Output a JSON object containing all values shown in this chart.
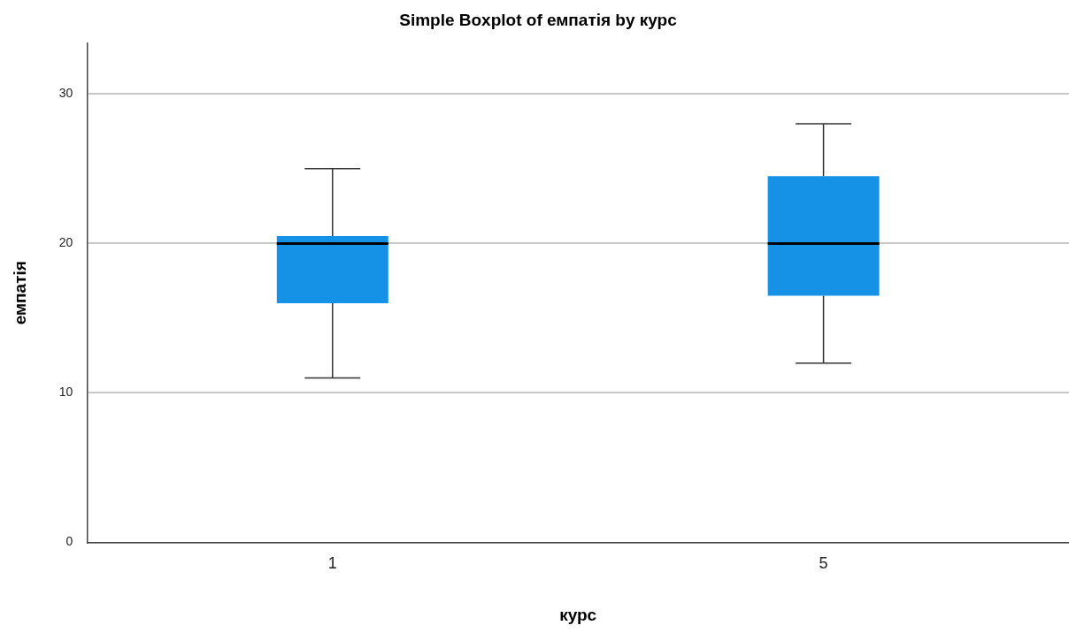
{
  "chart_data": {
    "type": "box",
    "title": "Simple Boxplot of емпатія by курс",
    "xlabel": "курс",
    "ylabel": "емпатія",
    "categories": [
      "1",
      "5"
    ],
    "boxes": [
      {
        "low": 11,
        "q1": 16,
        "median": 20,
        "q3": 20.5,
        "high": 25
      },
      {
        "low": 12,
        "q1": 16.5,
        "median": 20,
        "q3": 24.5,
        "high": 28
      }
    ],
    "color": "#1591e6",
    "ylim": [
      0,
      33.4
    ],
    "yticks": [
      0,
      10,
      20,
      30
    ],
    "grid": "y"
  }
}
